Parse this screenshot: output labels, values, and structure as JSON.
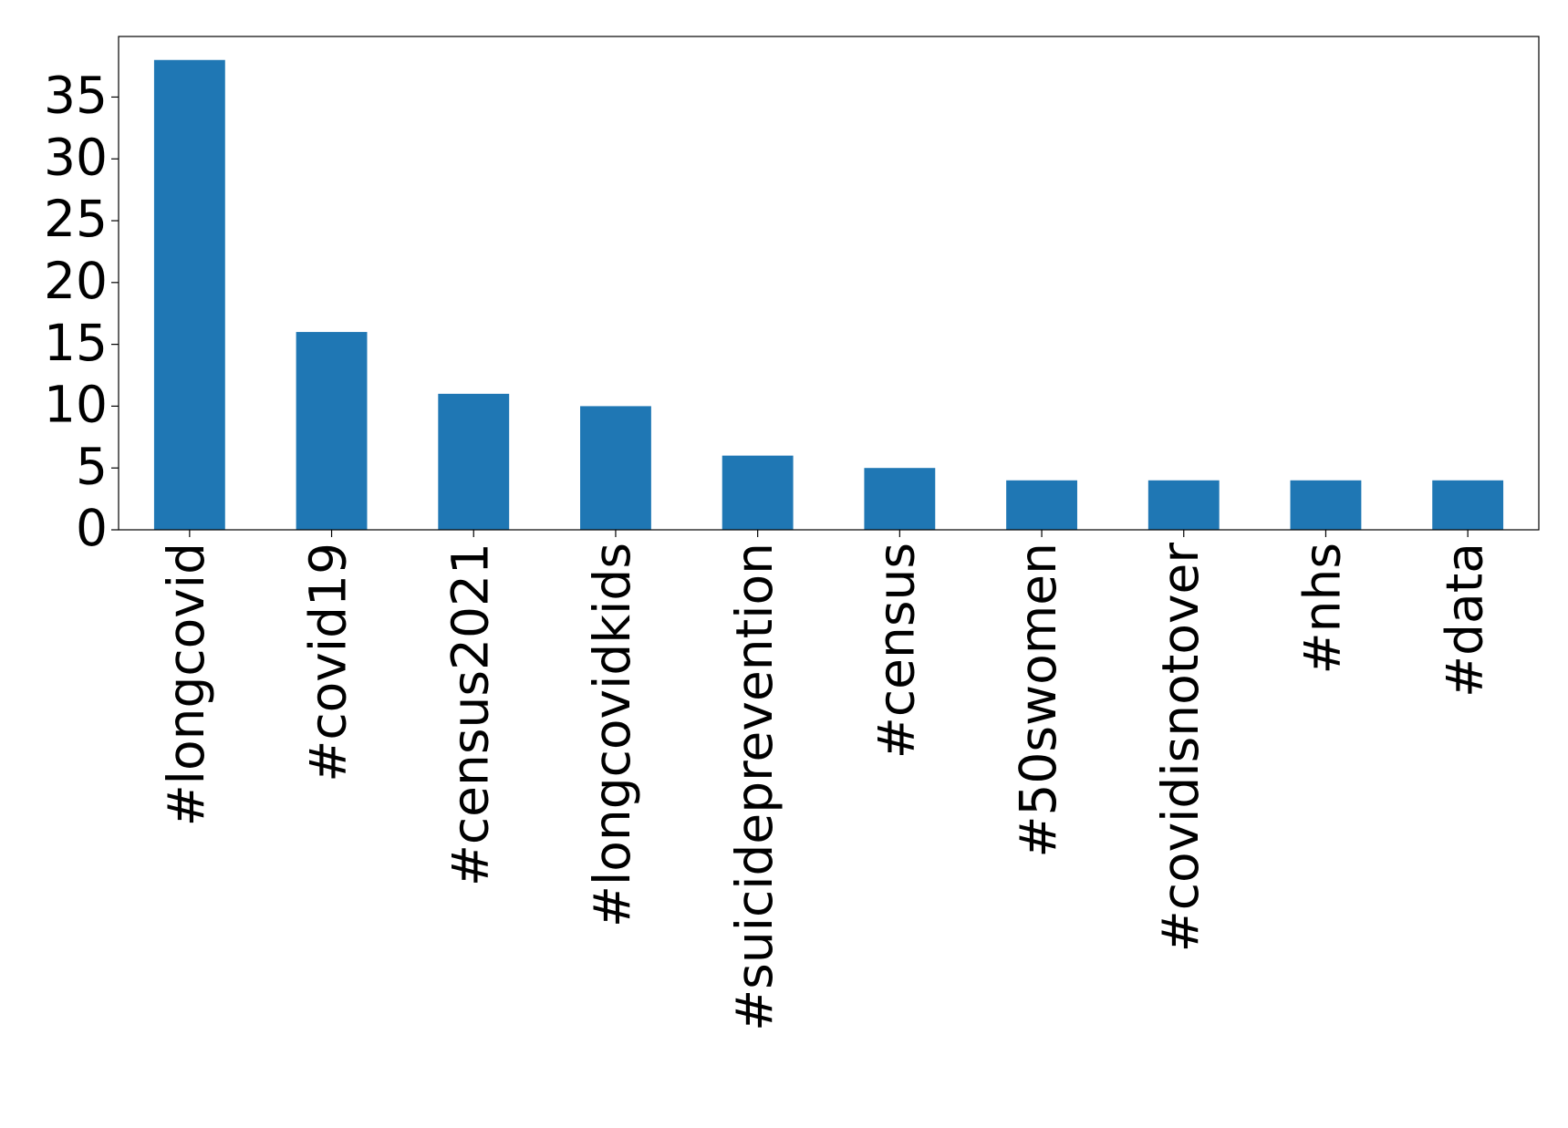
{
  "chart_data": {
    "type": "bar",
    "categories": [
      "#longcovid",
      "#covid19",
      "#census2021",
      "#longcovidkids",
      "#suicideprevention",
      "#census",
      "#50swomen",
      "#covidisnotover",
      "#nhs",
      "#data"
    ],
    "values": [
      38,
      16,
      11,
      10,
      6,
      5,
      4,
      4,
      4,
      4
    ],
    "color": "#1f77b4",
    "ylim": [
      0,
      39.9
    ],
    "yticks": [
      0,
      5,
      10,
      15,
      20,
      25,
      30,
      35
    ],
    "grid": false
  }
}
